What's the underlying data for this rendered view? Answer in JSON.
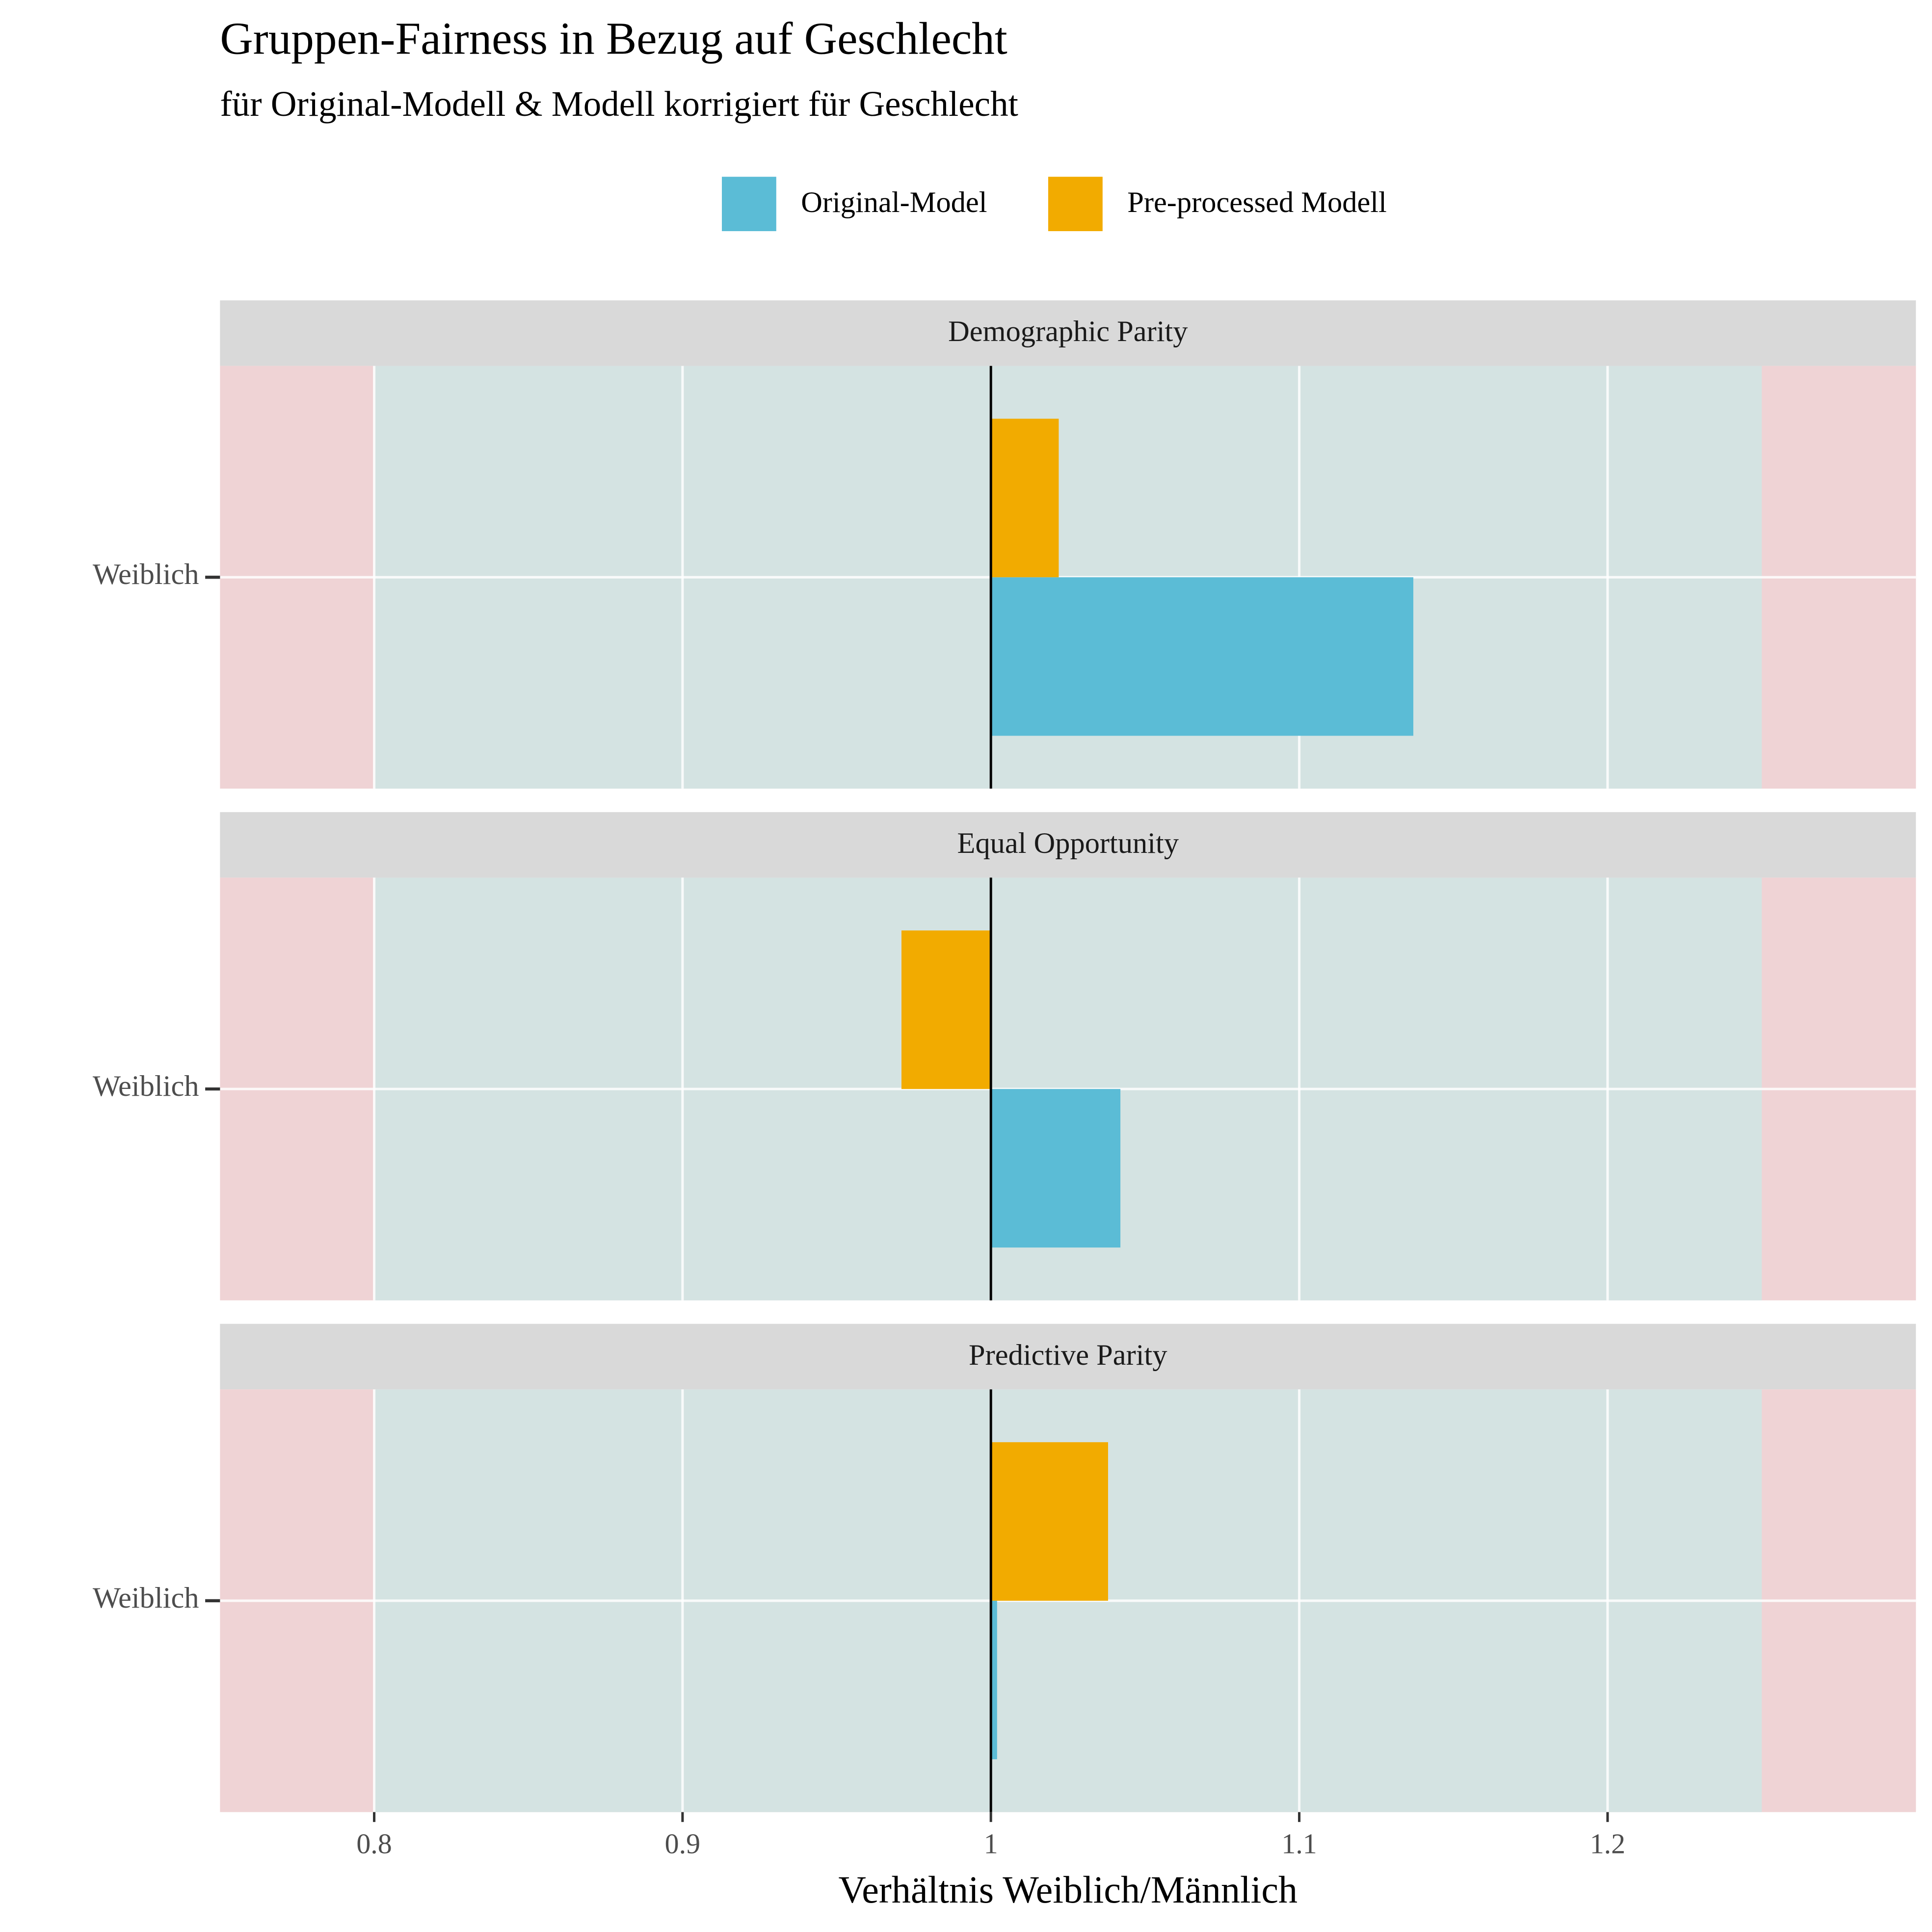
{
  "chart_data": {
    "type": "bar",
    "orientation": "horizontal",
    "title": "Gruppen-Fairness in Bezug auf Geschlecht",
    "subtitle": "für Original-Modell & Modell korrigiert für Geschlecht",
    "xlabel": "Verhältnis Weiblich/Männlich",
    "xlim": [
      0.75,
      1.3
    ],
    "xticks": [
      0.8,
      0.9,
      1,
      1.1,
      1.2
    ],
    "reference_line": 1,
    "fair_range": [
      0.8,
      1.25
    ],
    "grid": true,
    "legend": "top",
    "facets": [
      {
        "title": "Demographic Parity",
        "categories": [
          "Weiblich"
        ],
        "series": [
          {
            "name": "Original-Model",
            "color": "#5bbcd6",
            "values": [
              1.137
            ]
          },
          {
            "name": "Pre-processed Modell",
            "color": "#f2ab00",
            "values": [
              1.022
            ]
          }
        ]
      },
      {
        "title": "Equal Opportunity",
        "categories": [
          "Weiblich"
        ],
        "series": [
          {
            "name": "Original-Model",
            "color": "#5bbcd6",
            "values": [
              1.042
            ]
          },
          {
            "name": "Pre-processed Modell",
            "color": "#f2ab00",
            "values": [
              0.971
            ]
          }
        ]
      },
      {
        "title": "Predictive Parity",
        "categories": [
          "Weiblich"
        ],
        "series": [
          {
            "name": "Original-Model",
            "color": "#5bbcd6",
            "values": [
              1.002
            ]
          },
          {
            "name": "Pre-processed Modell",
            "color": "#f2ab00",
            "values": [
              1.038
            ]
          }
        ]
      }
    ]
  }
}
